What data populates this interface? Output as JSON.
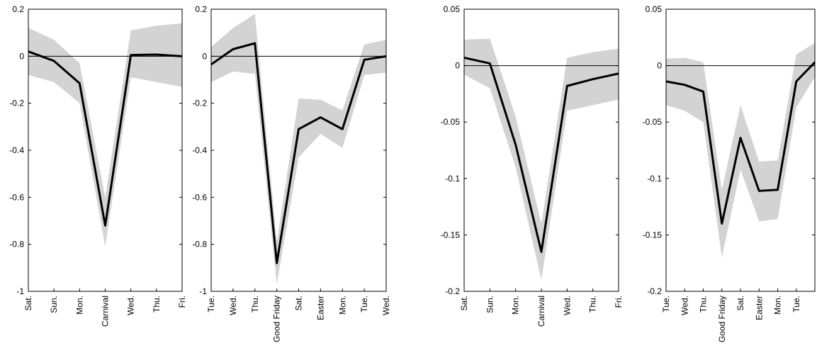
{
  "chart_data": [
    {
      "type": "line",
      "categories": [
        "Sat.",
        "Sun.",
        "Mon.",
        "Carnival",
        "Wed.",
        "Thu.",
        "Fri."
      ],
      "values": [
        0.02,
        -0.02,
        -0.115,
        -0.72,
        0.005,
        0.007,
        0.0
      ],
      "upper": [
        0.12,
        0.07,
        -0.03,
        -0.6,
        0.11,
        0.13,
        0.14
      ],
      "lower": [
        -0.08,
        -0.11,
        -0.2,
        -0.81,
        -0.09,
        -0.11,
        -0.13
      ],
      "color": "#000000",
      "band_color": "#d3d3d3",
      "ylim": [
        -1,
        0.2
      ],
      "yticks": [
        0.2,
        0,
        -0.2,
        -0.4,
        -0.6,
        -0.8,
        -1
      ]
    },
    {
      "type": "line",
      "categories": [
        "Tue.",
        "Wed.",
        "Thu.",
        "Good Friday",
        "Sat.",
        "Easter",
        "Mon.",
        "Tue.",
        "Wed."
      ],
      "values": [
        -0.035,
        0.03,
        0.055,
        -0.88,
        -0.31,
        -0.26,
        -0.31,
        -0.015,
        0.0
      ],
      "upper": [
        0.04,
        0.12,
        0.18,
        -0.79,
        -0.18,
        -0.185,
        -0.23,
        0.05,
        0.07
      ],
      "lower": [
        -0.11,
        -0.065,
        -0.075,
        -0.97,
        -0.43,
        -0.33,
        -0.39,
        -0.08,
        -0.07
      ],
      "color": "#000000",
      "band_color": "#d3d3d3",
      "ylim": [
        -1,
        0.2
      ],
      "yticks": [
        0.2,
        0,
        -0.2,
        -0.4,
        -0.6,
        -0.8,
        -1
      ]
    },
    {
      "type": "line",
      "categories": [
        "Sat.",
        "Sun.",
        "Mon.",
        "Carnival",
        "Wed.",
        "Thu.",
        "Fri."
      ],
      "values": [
        0.007,
        0.002,
        -0.07,
        -0.165,
        -0.018,
        -0.012,
        -0.007
      ],
      "upper": [
        0.023,
        0.024,
        -0.045,
        -0.14,
        0.007,
        0.012,
        0.015
      ],
      "lower": [
        -0.008,
        -0.02,
        -0.09,
        -0.19,
        -0.04,
        -0.035,
        -0.03
      ],
      "color": "#000000",
      "band_color": "#d3d3d3",
      "ylim": [
        -0.2,
        0.05
      ],
      "yticks": [
        0.05,
        0,
        -0.05,
        -0.1,
        -0.15,
        -0.2
      ]
    },
    {
      "type": "line",
      "categories": [
        "Tue.",
        "Wed.",
        "Thu.",
        "Good Friday",
        "Sat.",
        "Easter",
        "Mon.",
        "Tue.",
        null
      ],
      "values": [
        -0.014,
        -0.017,
        -0.023,
        -0.14,
        -0.064,
        -0.111,
        -0.11,
        -0.014,
        0.003
      ],
      "upper": [
        0.006,
        0.007,
        0.003,
        -0.11,
        -0.035,
        -0.085,
        -0.084,
        0.01,
        0.02
      ],
      "lower": [
        -0.035,
        -0.04,
        -0.05,
        -0.17,
        -0.092,
        -0.138,
        -0.136,
        -0.037,
        -0.01
      ],
      "color": "#000000",
      "band_color": "#d3d3d3",
      "ylim": [
        -0.2,
        0.05
      ],
      "yticks": [
        0.05,
        0,
        -0.05,
        -0.1,
        -0.15,
        -0.2
      ]
    }
  ]
}
